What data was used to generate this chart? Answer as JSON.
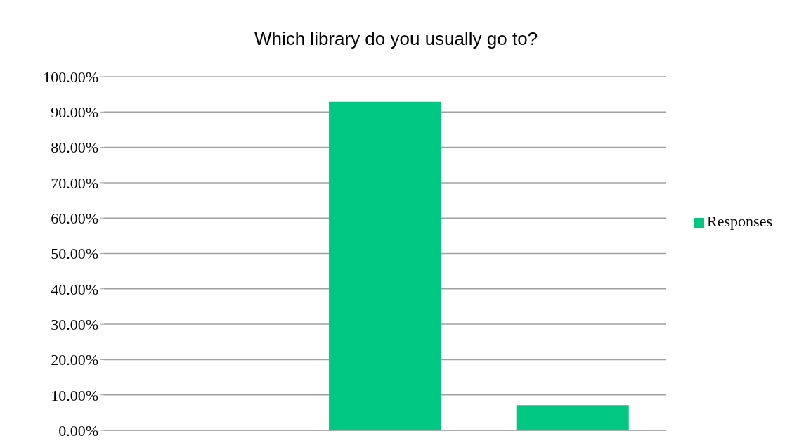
{
  "chart_data": {
    "type": "bar",
    "title": "Which library do you usually go to?",
    "categories": [
      null,
      null,
      null
    ],
    "series": [
      {
        "name": "Responses",
        "color": "#00c882",
        "values": [
          0,
          92.9,
          7.1
        ]
      }
    ],
    "ylim": [
      0,
      100
    ],
    "yticks": [
      {
        "value": 0,
        "label": "0.00%"
      },
      {
        "value": 10,
        "label": "10.00%"
      },
      {
        "value": 20,
        "label": "20.00%"
      },
      {
        "value": 30,
        "label": "30.00%"
      },
      {
        "value": 40,
        "label": "40.00%"
      },
      {
        "value": 50,
        "label": "50.00%"
      },
      {
        "value": 60,
        "label": "60.00%"
      },
      {
        "value": 70,
        "label": "70.00%"
      },
      {
        "value": 80,
        "label": "80.00%"
      },
      {
        "value": 90,
        "label": "90.00%"
      },
      {
        "value": 100,
        "label": "100.00%"
      }
    ],
    "grid": "y",
    "legend": "right",
    "tick_labels": "y"
  }
}
